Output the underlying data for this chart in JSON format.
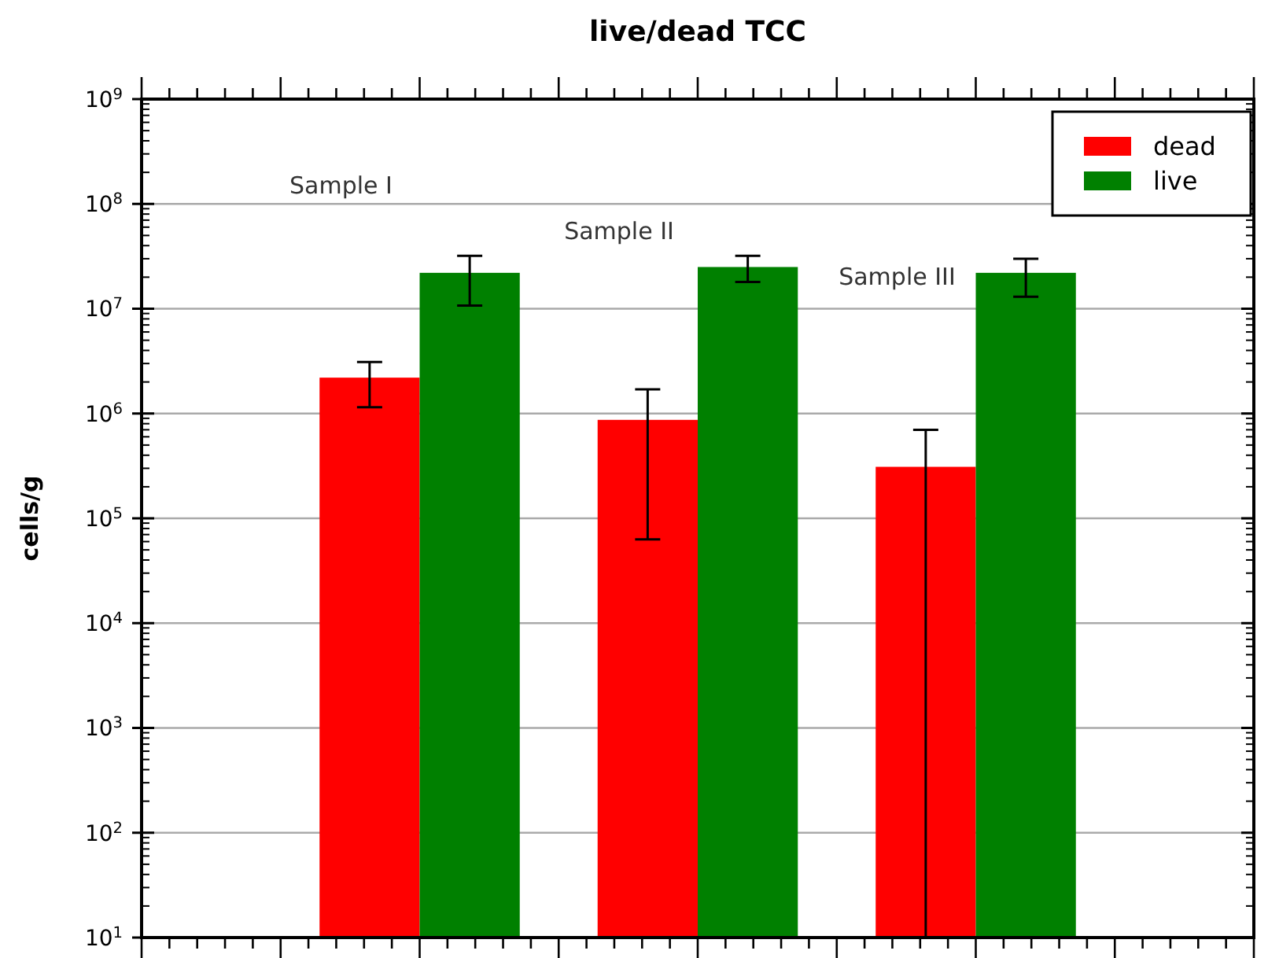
{
  "chart_data": {
    "type": "bar",
    "title": "live/dead TCC",
    "ylabel": "cells/g",
    "categories": [
      null,
      null,
      null
    ],
    "series": [
      {
        "name": "dead",
        "color": "#ff0000",
        "values": [
          2200000,
          870000,
          310000
        ],
        "errors": [
          [
            1150000,
            3100000
          ],
          [
            63000,
            1700000
          ],
          [
            10,
            700000
          ]
        ]
      },
      {
        "name": "live",
        "color": "#008000",
        "values": [
          22000000,
          25000000,
          22000000
        ],
        "errors": [
          [
            10700000,
            32000000
          ],
          [
            18000000,
            32000000
          ],
          [
            13000000,
            30000000
          ]
        ]
      }
    ],
    "annotations": [
      "Sample I",
      "Sample II",
      "Sample III"
    ],
    "log": true,
    "ylim": [
      10,
      1000000000
    ],
    "yticks": [
      {
        "value": 10,
        "label": "10$^{1}$"
      },
      {
        "value": 100,
        "label": "10$^{2}$"
      },
      {
        "value": 1000,
        "label": "10$^{3}$"
      },
      {
        "value": 10000,
        "label": "10$^{4}$"
      },
      {
        "value": 100000,
        "label": "10$^{5}$"
      },
      {
        "value": 1000000,
        "label": "10$^{6}$"
      },
      {
        "value": 10000000,
        "label": "10$^{7}$"
      },
      {
        "value": 100000000,
        "label": "10$^{8}$"
      },
      {
        "value": 1000000000,
        "label": "10$^{9}$"
      }
    ],
    "grid": "y",
    "legend": "top right"
  }
}
